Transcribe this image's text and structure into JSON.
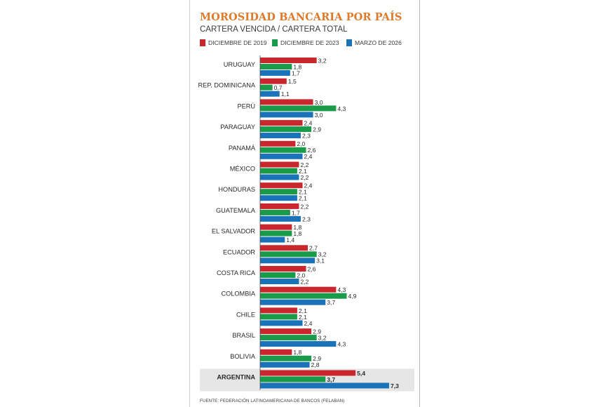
{
  "header": {
    "title": "MOROSIDAD BANCARIA POR PAÍS",
    "subtitle": "CARTERA VENCIDA / CARTERA TOTAL"
  },
  "legend": [
    {
      "label": "DICIEMBRE DE 2019",
      "color": "#c9262d"
    },
    {
      "label": "DICIEMBRE DE 2023",
      "color": "#199b4a"
    },
    {
      "label": "MARZO DE 2026",
      "color": "#1a72b8"
    }
  ],
  "source": "FUENTE: FEDERACIÓN LATINOAMERICANA DE BANCOS (FELABAN)",
  "chart_data": {
    "type": "bar",
    "orientation": "horizontal",
    "title": "MOROSIDAD BANCARIA POR PAÍS",
    "subtitle": "CARTERA VENCIDA / CARTERA TOTAL",
    "categories": [
      "URUGUAY",
      "REP. DOMINICANA",
      "PERÚ",
      "PARAGUAY",
      "PANAMÁ",
      "MÉXICO",
      "HONDURAS",
      "GUATEMALA",
      "EL SALVADOR",
      "ECUADOR",
      "COSTA RICA",
      "COLOMBIA",
      "CHILE",
      "BRASIL",
      "BOLIVIA",
      "ARGENTINA"
    ],
    "highlight_category": "ARGENTINA",
    "series": [
      {
        "name": "DICIEMBRE DE 2019",
        "color": "#c9262d",
        "values": [
          3.2,
          1.5,
          3.0,
          2.4,
          2.0,
          2.2,
          2.4,
          2.2,
          1.8,
          2.7,
          2.6,
          4.3,
          2.1,
          2.9,
          1.8,
          5.4
        ]
      },
      {
        "name": "DICIEMBRE DE 2023",
        "color": "#199b4a",
        "values": [
          1.8,
          0.7,
          4.3,
          2.9,
          2.6,
          2.1,
          2.1,
          1.7,
          1.8,
          3.2,
          2.0,
          4.9,
          2.1,
          3.2,
          2.9,
          3.7
        ]
      },
      {
        "name": "MARZO DE 2026",
        "color": "#1a72b8",
        "values": [
          1.7,
          1.1,
          3.0,
          2.3,
          2.4,
          2.2,
          2.1,
          2.3,
          1.4,
          3.1,
          2.2,
          3.7,
          2.4,
          4.3,
          2.8,
          7.3
        ]
      }
    ],
    "labels": [
      [
        "3,2",
        "1,8",
        "1,7"
      ],
      [
        "1,5",
        "0,7",
        "1,1"
      ],
      [
        "3,0",
        "4,3",
        "3,0"
      ],
      [
        "2,4",
        "2,9",
        "2,3"
      ],
      [
        "2,0",
        "2,6",
        "2,4"
      ],
      [
        "2,2",
        "2,1",
        "2,2"
      ],
      [
        "2,4",
        "2,1",
        "2,1"
      ],
      [
        "2,2",
        "1,7",
        "2,3"
      ],
      [
        "1,8",
        "1,8",
        "1,4"
      ],
      [
        "2,7",
        "3,2",
        "3,1"
      ],
      [
        "2,6",
        "2,0",
        "2,2"
      ],
      [
        "4,3",
        "4,9",
        "3,7"
      ],
      [
        "2,1",
        "2,1",
        "2,4"
      ],
      [
        "2,9",
        "3,2",
        "4,3"
      ],
      [
        "1,8",
        "2,9",
        "2,8"
      ],
      [
        "5,4",
        "3,7",
        "7,3"
      ]
    ],
    "xlim": [
      0,
      7.3
    ],
    "grid": false,
    "legend_position": "top"
  }
}
